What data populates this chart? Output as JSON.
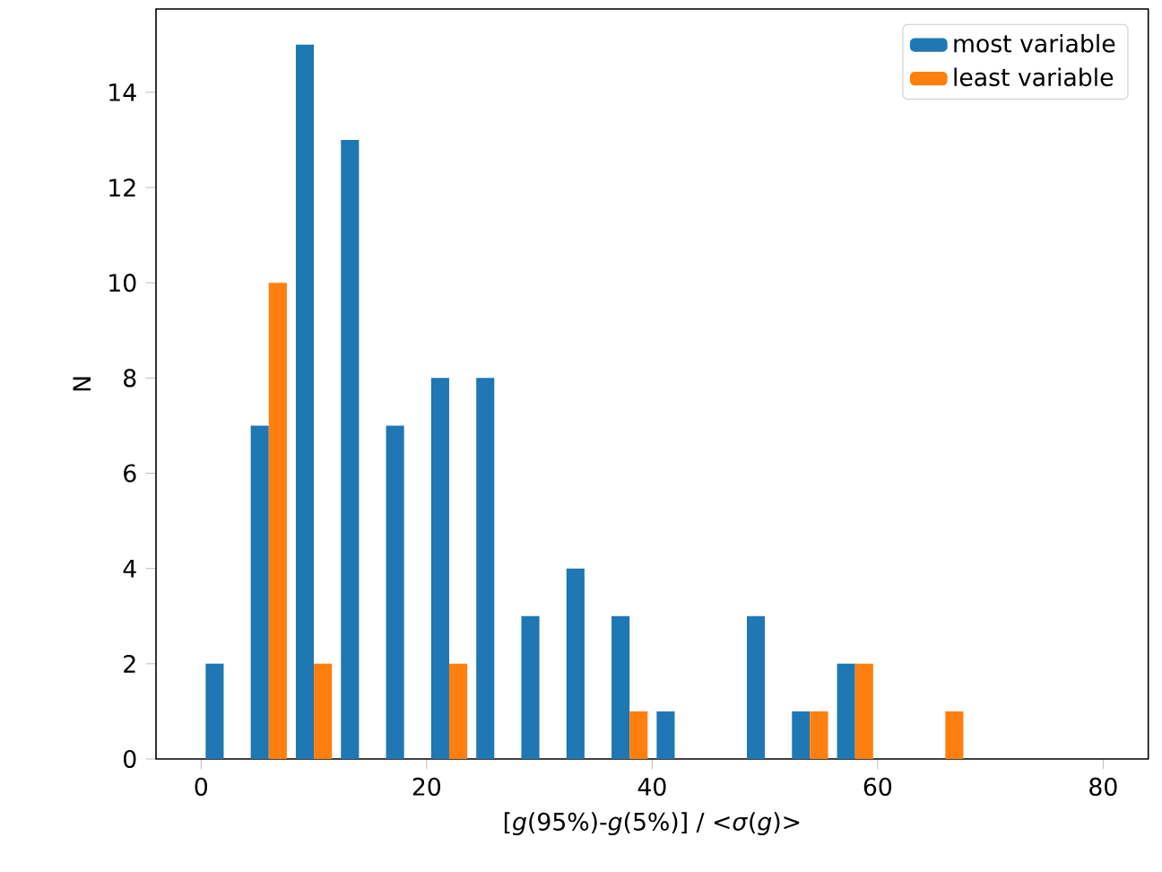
{
  "chart_data": {
    "type": "histogram",
    "xlabel": "[*g*(95%)-*g*(5%)] / <*σ*(*g*)>",
    "ylabel": "N",
    "bins": [
      0,
      4,
      8,
      12,
      16,
      20,
      24,
      28,
      32,
      36,
      40,
      44,
      48,
      52,
      56,
      60,
      64,
      68,
      72,
      76,
      80
    ],
    "series": [
      {
        "name": "most variable",
        "color": "#1f77b4",
        "values": [
          2,
          7,
          15,
          13,
          7,
          8,
          8,
          3,
          4,
          3,
          1,
          0,
          3,
          1,
          2,
          0,
          0,
          0,
          0,
          0
        ]
      },
      {
        "name": "least variable",
        "color": "#ff7f0e",
        "values": [
          0,
          10,
          2,
          0,
          0,
          2,
          0,
          0,
          0,
          1,
          0,
          0,
          0,
          1,
          2,
          0,
          1,
          0,
          0,
          0
        ]
      }
    ],
    "xlim": [
      -4,
      84
    ],
    "ylim": [
      0,
      15.75
    ],
    "xticks": [
      0,
      20,
      40,
      60,
      80
    ],
    "yticks": [
      0,
      2,
      4,
      6,
      8,
      10,
      12,
      14
    ],
    "legend": "top right",
    "grid": false
  }
}
